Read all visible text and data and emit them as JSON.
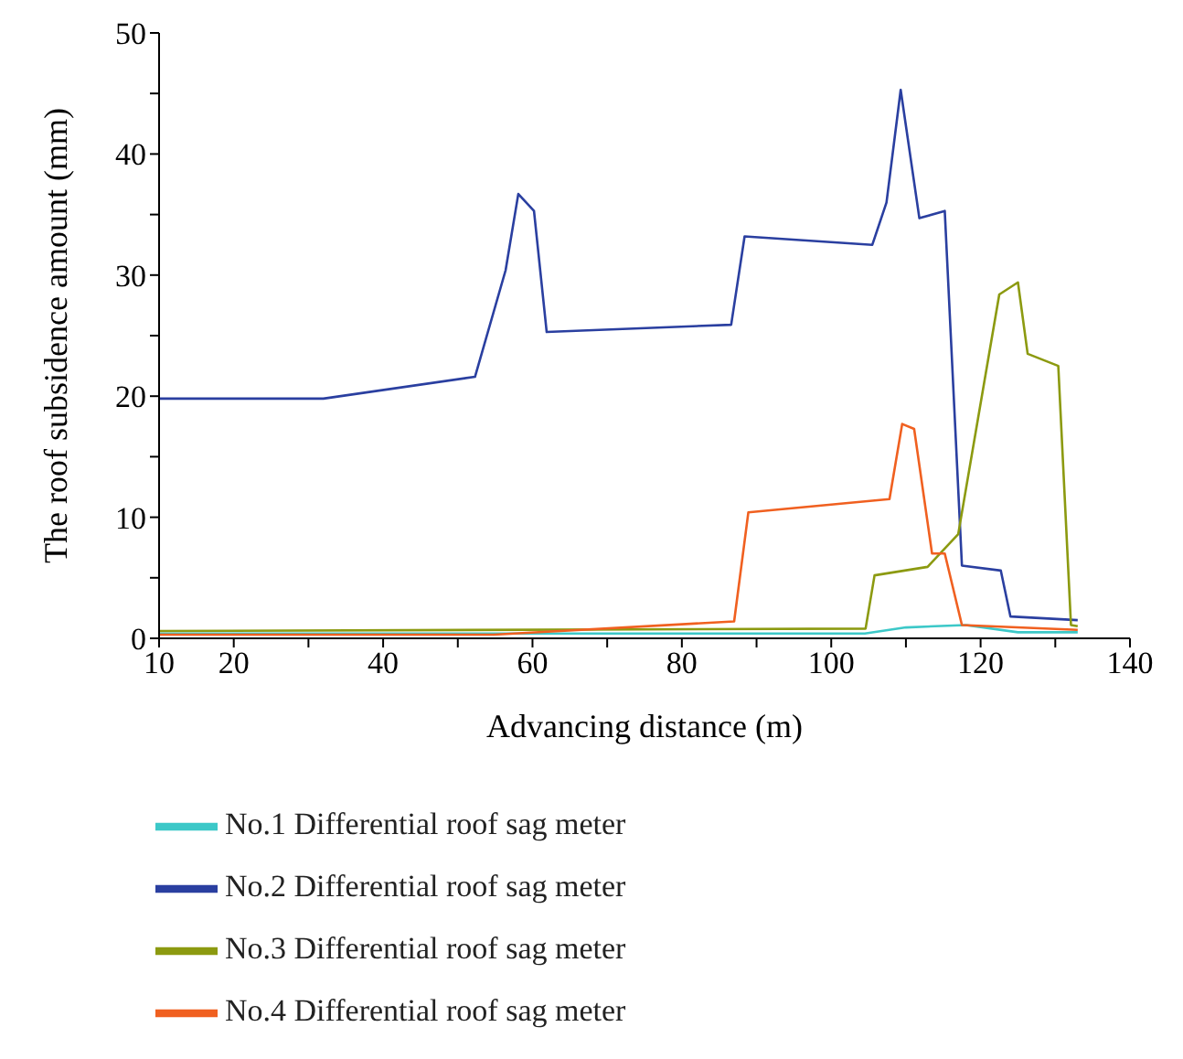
{
  "chart_data": {
    "type": "line",
    "xlabel": "Advancing distance (m)",
    "ylabel": "The roof subsidence amount (mm)",
    "xlim": [
      10,
      140
    ],
    "xticks": [
      10,
      20,
      {
        "value": 30,
        "label": null
      },
      40,
      {
        "value": 50,
        "label": null
      },
      60,
      {
        "value": 70,
        "label": null
      },
      80,
      {
        "value": 90,
        "label": null
      },
      100,
      {
        "value": 110,
        "label": null
      },
      120,
      {
        "value": 130,
        "label": null
      },
      140
    ],
    "ylim": [
      0,
      50
    ],
    "yticks": [
      0,
      {
        "value": 5,
        "label": null
      },
      10,
      {
        "value": 15,
        "label": null
      },
      20,
      {
        "value": 25,
        "label": null
      },
      30,
      {
        "value": 35,
        "label": null
      },
      40,
      {
        "value": 45,
        "label": null
      },
      50
    ],
    "grid": false,
    "legend": "bottom left",
    "marker": "none",
    "line_style": "solid",
    "series": [
      {
        "name": "No.1 Differential roof sag meter",
        "color": "#3cc8c8",
        "x": [
          10,
          104.5,
          110,
          118,
          125,
          133
        ],
        "values": [
          0.4,
          0.4,
          0.9,
          1.1,
          0.5,
          0.5
        ]
      },
      {
        "name": "No.2 Differential roof sag meter",
        "color": "#2a3fa0",
        "x": [
          10,
          32,
          52.3,
          56.4,
          58.1,
          60.2,
          61.9,
          86.6,
          88.4,
          105.5,
          107.4,
          109.3,
          111.8,
          115.2,
          117.5,
          122.7,
          124,
          133
        ],
        "values": [
          19.8,
          19.8,
          21.6,
          30.4,
          36.7,
          35.3,
          25.3,
          25.9,
          33.2,
          32.5,
          36,
          45.3,
          34.7,
          35.3,
          6,
          5.6,
          1.8,
          1.5
        ]
      },
      {
        "name": "No.3 Differential roof sag meter",
        "color": "#8c9a10",
        "x": [
          10,
          104.6,
          105.8,
          112.9,
          117,
          122.5,
          125,
          126.3,
          130.4,
          132.1,
          133
        ],
        "values": [
          0.6,
          0.8,
          5.2,
          5.9,
          8.6,
          28.4,
          29.4,
          23.5,
          22.5,
          1.1,
          1
        ]
      },
      {
        "name": "No.4 Differential roof sag meter",
        "color": "#f06020",
        "x": [
          10,
          54.8,
          87,
          88.9,
          107.8,
          109.5,
          111.1,
          113.5,
          115.2,
          117.5,
          133
        ],
        "values": [
          0.3,
          0.3,
          1.4,
          10.4,
          11.5,
          17.7,
          17.3,
          7,
          7,
          1.1,
          0.7
        ]
      }
    ]
  }
}
